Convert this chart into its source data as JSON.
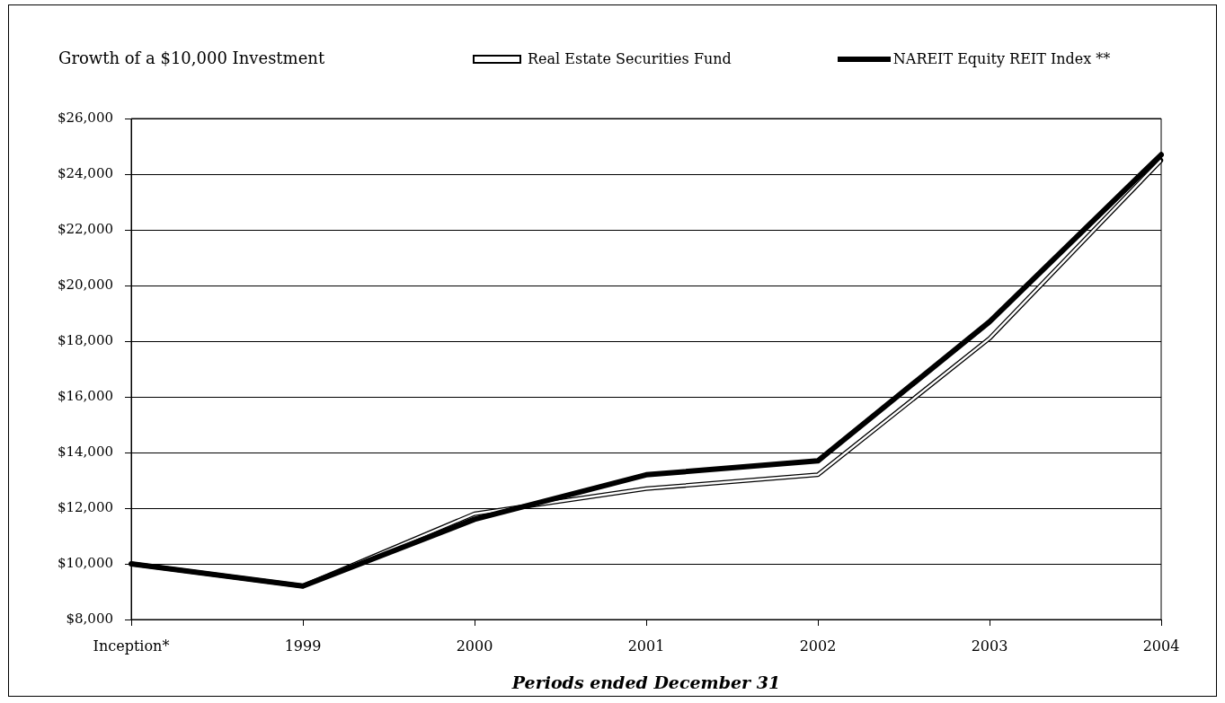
{
  "chart_data": {
    "type": "line",
    "title": "Growth of a $10,000 Investment",
    "xlabel": "Periods ended December 31",
    "categories": [
      "Inception*",
      "1999",
      "2000",
      "2001",
      "2002",
      "2003",
      "2004"
    ],
    "series": [
      {
        "name": "Real Estate Securities Fund",
        "color": "#000000",
        "values": [
          10000,
          9200,
          11800,
          12700,
          13200,
          18100,
          24500
        ]
      },
      {
        "name": "NAREIT Equity REIT Index **",
        "color": "#000000",
        "values": [
          10000,
          9200,
          11600,
          13200,
          13700,
          18700,
          24700
        ]
      }
    ],
    "ylim": [
      8000,
      26000
    ],
    "yticks": [
      {
        "value": 8000,
        "label": "$8,000"
      },
      {
        "value": 10000,
        "label": "$10,000"
      },
      {
        "value": 12000,
        "label": "$12,000"
      },
      {
        "value": 14000,
        "label": "$14,000"
      },
      {
        "value": 16000,
        "label": "$16,000"
      },
      {
        "value": 18000,
        "label": "$18,000"
      },
      {
        "value": 20000,
        "label": "$20,000"
      },
      {
        "value": 22000,
        "label": "$22,000"
      },
      {
        "value": 24000,
        "label": "$24,000"
      },
      {
        "value": 26000,
        "label": "$26,000"
      }
    ],
    "grid": "y",
    "legend": "top",
    "marker": "none",
    "line_style": "solid"
  }
}
